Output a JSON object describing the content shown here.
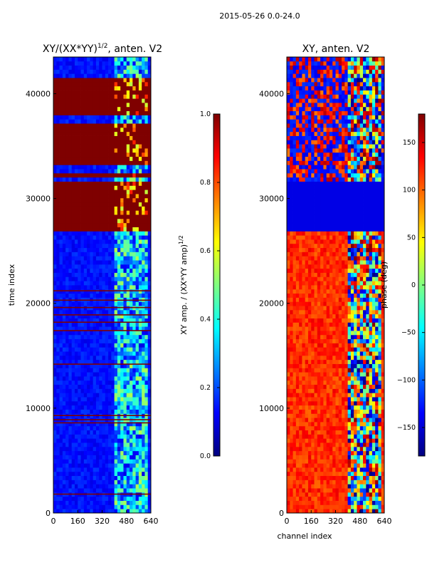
{
  "figure": {
    "suptitle": "2015-05-26 0.0-24.0"
  },
  "colormap_stops": [
    "#00007f",
    "#0000ff",
    "#0080ff",
    "#00ffff",
    "#80ff80",
    "#ffff00",
    "#ff8000",
    "#ff0000",
    "#7f0000"
  ],
  "chart_data": [
    {
      "type": "heatmap",
      "title_prefix": "XY/(XX*YY)",
      "title_exponent": "1/2",
      "title_suffix": ", anten. V2",
      "xlabel": "",
      "ylabel": "time index",
      "xlim": [
        0,
        640
      ],
      "ylim": [
        0,
        43500
      ],
      "xticks": [
        0,
        160,
        320,
        480,
        640
      ],
      "yticks": [
        0,
        10000,
        20000,
        30000,
        40000
      ],
      "colorbar": {
        "label_prefix": "XY amp. / (XX*YY amp)",
        "label_exponent": "1/2",
        "range": [
          0.0,
          1.0
        ],
        "ticks": [
          0.0,
          0.2,
          0.4,
          0.6,
          0.8,
          1.0
        ],
        "tick_labels": [
          "0.0",
          "0.2",
          "0.4",
          "0.6",
          "0.8",
          "1.0"
        ]
      },
      "full_value_time_bands": [
        [
          26700,
          31600
        ],
        [
          32100,
          32600
        ],
        [
          33200,
          34000
        ],
        [
          34200,
          37000
        ],
        [
          37800,
          38600
        ],
        [
          38700,
          41000
        ],
        [
          41300,
          41600
        ]
      ],
      "thin_full_value_rows": [
        1800,
        8600,
        8900,
        9300,
        14200,
        17400,
        18200,
        18900,
        19600,
        20300,
        21200
      ],
      "high_value_channel_range": [
        400,
        620
      ],
      "background_value": 0.1
    },
    {
      "type": "heatmap",
      "title": "XY, anten. V2",
      "xlabel": "channel index",
      "ylabel": "",
      "xlim": [
        0,
        640
      ],
      "ylim": [
        0,
        43500
      ],
      "xticks": [
        0,
        160,
        320,
        480,
        640
      ],
      "yticks": [
        0,
        10000,
        20000,
        30000,
        40000
      ],
      "colorbar": {
        "label": "phase (deg)",
        "range": [
          -180,
          180
        ],
        "ticks": [
          -150,
          -100,
          -50,
          0,
          50,
          100,
          150
        ],
        "tick_labels": [
          "−150",
          "−100",
          "−50",
          "0",
          "50",
          "100",
          "150"
        ]
      },
      "uniform_low_phase_time_band": [
        26700,
        31600
      ],
      "background_phase_deg": 120,
      "varying_phase_channel_range": [
        400,
        620
      ]
    }
  ]
}
